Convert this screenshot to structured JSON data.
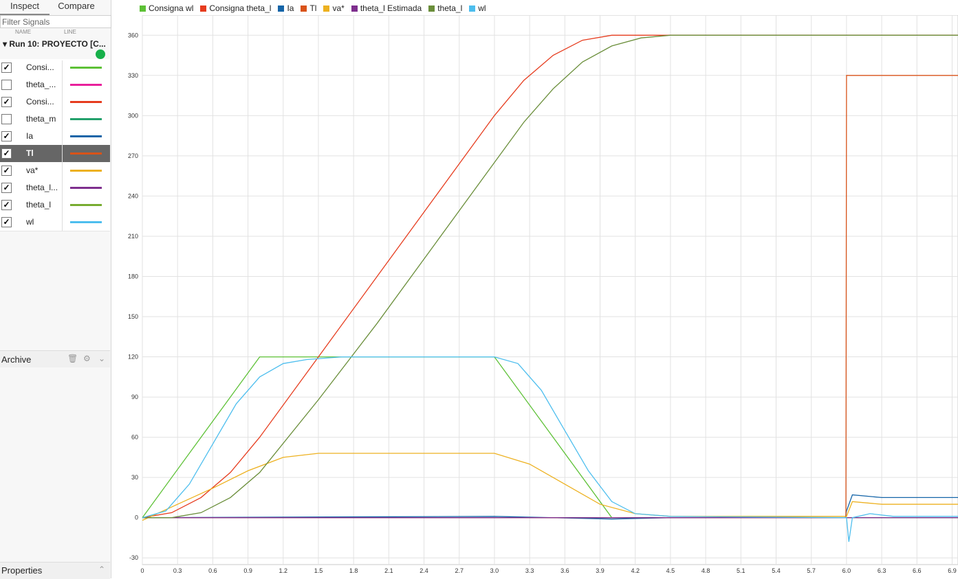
{
  "sidebar": {
    "tabs": [
      "Inspect",
      "Compare"
    ],
    "filter_placeholder": "Filter Signals",
    "col_name": "NAME",
    "col_line": "LINE",
    "run_label": "Run 10: PROYECTO [C...",
    "signals": [
      {
        "name": "Consi...",
        "checked": true,
        "color": "#5dc136"
      },
      {
        "name": "theta_...",
        "checked": false,
        "color": "#e8209b"
      },
      {
        "name": "Consi...",
        "checked": true,
        "color": "#e63c1e"
      },
      {
        "name": "theta_m",
        "checked": false,
        "color": "#22a06b"
      },
      {
        "name": "Ia",
        "checked": true,
        "color": "#1565a8"
      },
      {
        "name": "Tl",
        "checked": true,
        "color": "#d95319",
        "selected": true
      },
      {
        "name": "va*",
        "checked": true,
        "color": "#edb120"
      },
      {
        "name": "theta_l...",
        "checked": true,
        "color": "#7e2f8e"
      },
      {
        "name": "theta_l",
        "checked": true,
        "color": "#77ac30"
      },
      {
        "name": "wl",
        "checked": true,
        "color": "#4dbeee"
      }
    ],
    "archive_label": "Archive",
    "properties_label": "Properties"
  },
  "chart_data": {
    "type": "line",
    "xlim": [
      0,
      6.95
    ],
    "ylim": [
      -35,
      375
    ],
    "x_ticks": [
      "0",
      "0.3",
      "0.6",
      "0.9",
      "1.2",
      "1.5",
      "1.8",
      "2.1",
      "2.4",
      "2.7",
      "3.0",
      "3.3",
      "3.6",
      "3.9",
      "4.2",
      "4.5",
      "4.8",
      "5.1",
      "5.4",
      "5.7",
      "6.0",
      "6.3",
      "6.6",
      "6.9"
    ],
    "y_ticks": [
      "-30",
      "0",
      "30",
      "60",
      "90",
      "120",
      "150",
      "180",
      "210",
      "240",
      "270",
      "300",
      "330",
      "360"
    ],
    "grid": true,
    "legend_position": "top",
    "series": [
      {
        "name": "Consigna wl",
        "color": "#5dc136",
        "x": [
          0,
          1.0,
          3.0,
          4.0,
          6.95
        ],
        "y": [
          0,
          120,
          120,
          0,
          0
        ]
      },
      {
        "name": "Consigna theta_l",
        "color": "#e63c1e",
        "x": [
          0,
          0.25,
          0.5,
          0.75,
          1.0,
          1.5,
          2.0,
          2.5,
          3.0,
          3.25,
          3.5,
          3.75,
          4.0,
          6.95
        ],
        "y": [
          0,
          3.75,
          15,
          33.75,
          60,
          120,
          180,
          240,
          300,
          326.25,
          345,
          356.25,
          360,
          360
        ]
      },
      {
        "name": "Ia",
        "color": "#1565a8",
        "x": [
          0,
          3.0,
          4.0,
          4.5,
          5.99,
          6.0,
          6.05,
          6.3,
          6.95
        ],
        "y": [
          0,
          1,
          -1,
          0,
          0,
          5,
          17,
          15,
          15
        ]
      },
      {
        "name": "Tl",
        "color": "#d95319",
        "x": [
          0,
          5.995,
          6.0,
          6.95
        ],
        "y": [
          0,
          0,
          330,
          330
        ]
      },
      {
        "name": "va*",
        "color": "#edb120",
        "x": [
          0,
          0.3,
          0.6,
          0.9,
          1.2,
          1.5,
          1.8,
          2.4,
          3.0,
          3.3,
          3.6,
          3.9,
          4.2,
          4.5,
          6.0,
          6.05,
          6.3,
          6.95
        ],
        "y": [
          -2,
          10,
          22,
          35,
          45,
          48,
          48,
          48,
          48,
          40,
          25,
          10,
          3,
          1,
          1,
          12,
          10,
          10
        ]
      },
      {
        "name": "theta_l Estimada",
        "color": "#7e2f8e",
        "x": [
          0,
          6.95
        ],
        "y": [
          0,
          0
        ]
      },
      {
        "name": "theta_l",
        "color": "#6a8e3a",
        "x": [
          0,
          0.25,
          0.5,
          0.75,
          1.0,
          1.5,
          2.0,
          2.5,
          3.0,
          3.25,
          3.5,
          3.75,
          4.0,
          4.25,
          4.5,
          6.95
        ],
        "y": [
          0,
          0,
          3.75,
          15,
          33.75,
          88,
          145,
          205,
          265,
          295,
          320,
          340,
          352,
          358,
          360,
          360
        ]
      },
      {
        "name": "wl",
        "color": "#4dbeee",
        "x": [
          0,
          0.2,
          0.4,
          0.6,
          0.8,
          1.0,
          1.2,
          1.4,
          1.7,
          2.0,
          3.0,
          3.2,
          3.4,
          3.6,
          3.8,
          4.0,
          4.2,
          4.5,
          6.0,
          6.02,
          6.05,
          6.2,
          6.4,
          6.95
        ],
        "y": [
          0,
          5,
          25,
          55,
          85,
          105,
          115,
          118,
          120,
          120,
          120,
          115,
          95,
          65,
          35,
          12,
          3,
          1,
          0,
          -18,
          0,
          3,
          1,
          1
        ]
      }
    ]
  }
}
